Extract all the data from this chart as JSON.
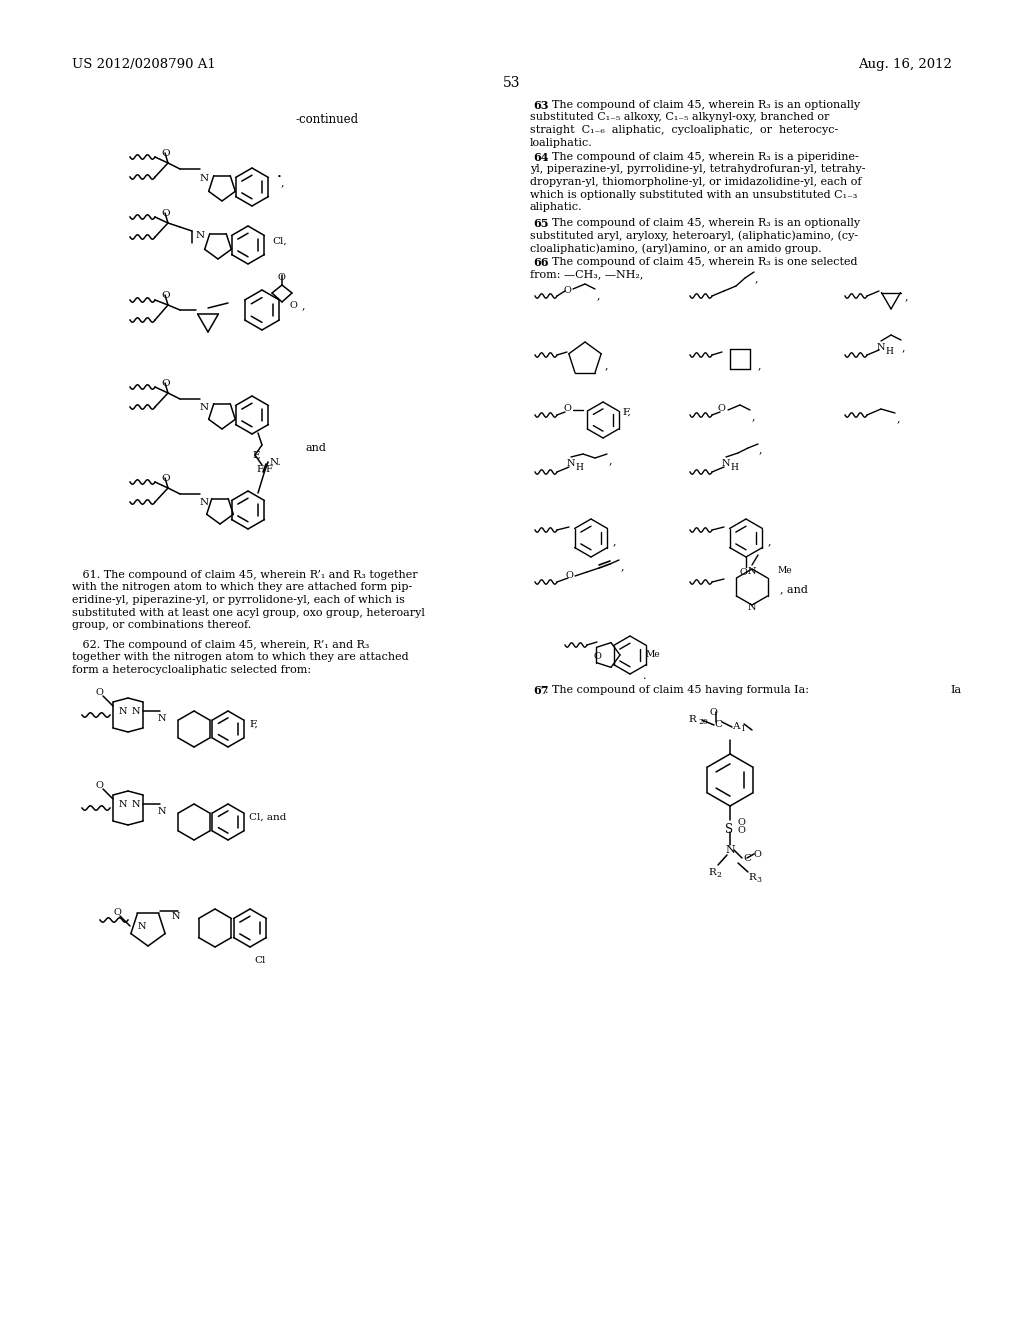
{
  "page_header_left": "US 2012/0208790 A1",
  "page_header_right": "Aug. 16, 2012",
  "page_number": "53",
  "continued_label": "-continued",
  "claim61_lines": [
    "   61. The compound of claim 45, wherein R’₁ and R₃ together",
    "with the nitrogen atom to which they are attached form pip-",
    "eridine-yl, piperazine-yl, or pyrrolidone-yl, each of which is",
    "substituted with at least one acyl group, oxo group, heteroaryl",
    "group, or combinations thereof."
  ],
  "claim62_lines": [
    "   62. The compound of claim 45, wherein, R’₁ and R₃",
    "together with the nitrogen atom to which they are attached",
    "form a heterocycloaliphatic selected from:"
  ],
  "claim63_lines": [
    "   63. The compound of claim 45, wherein R₃ is an optionally",
    "substituted C₁₋₅ alkoxy, C₁₋₅ alkynyl-oxy, branched or",
    "straight  C₁₋₆  aliphatic,  cycloaliphatic,  or  heterocyc-",
    "loaliphatic."
  ],
  "claim64_lines": [
    "   64. The compound of claim 45, wherein R₃ is a piperidine-",
    "yl, piperazine-yl, pyrrolidine-yl, tetrahydrofuran-yl, tetrahy-",
    "dropyran-yl, thiomorpholine-yl, or imidazolidine-yl, each of",
    "which is optionally substituted with an unsubstituted C₁₋₃",
    "aliphatic."
  ],
  "claim65_lines": [
    "   65. The compound of claim 45, wherein R₃ is an optionally",
    "substituted aryl, aryloxy, heteroaryl, (aliphatic)amino, (cy-",
    "cloaliphatic)amino, (aryl)amino, or an amido group."
  ],
  "claim66_lines": [
    "   66. The compound of claim 45, wherein R₃ is one selected",
    "from: —CH₃, —NH₂,"
  ],
  "claim67_line": "   67. The compound of claim 45 having formula Ia:",
  "claim67_Ia": "Ia"
}
